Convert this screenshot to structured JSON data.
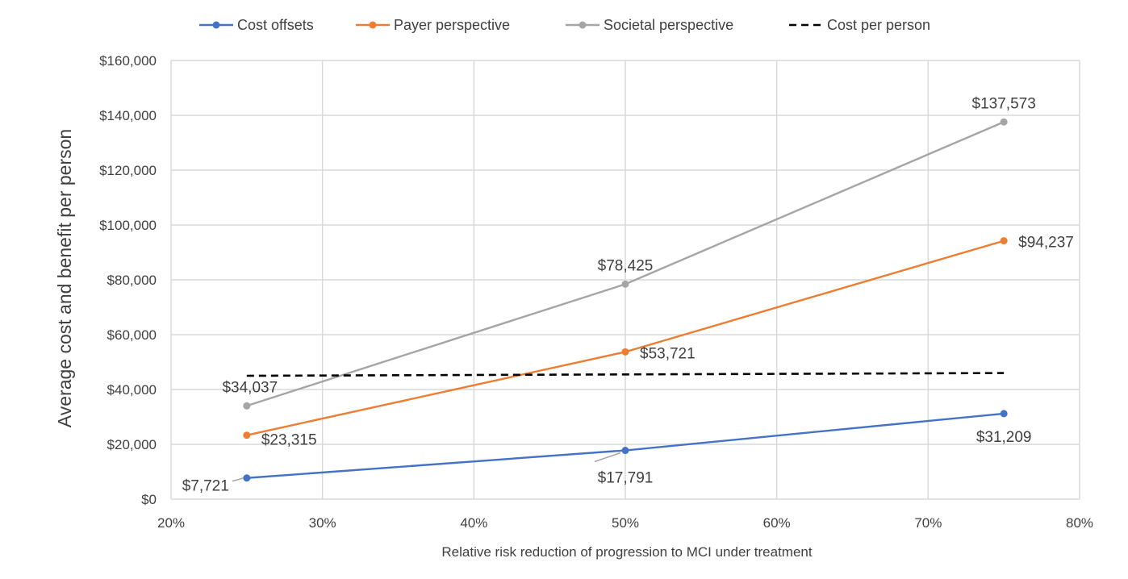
{
  "chart_data": {
    "type": "line",
    "title": "",
    "xlabel": "Relative risk reduction of progression to MCI under treatment",
    "ylabel": "Average cost and benefit per person",
    "xlim": [
      0.2,
      0.8
    ],
    "ylim": [
      0,
      160000
    ],
    "x_ticks": [
      0.2,
      0.3,
      0.4,
      0.5,
      0.6,
      0.7,
      0.8
    ],
    "x_tick_labels": [
      "20%",
      "30%",
      "40%",
      "50%",
      "60%",
      "70%",
      "80%"
    ],
    "y_ticks": [
      0,
      20000,
      40000,
      60000,
      80000,
      100000,
      120000,
      140000,
      160000
    ],
    "y_tick_labels": [
      "$0",
      "$20,000",
      "$40,000",
      "$60,000",
      "$80,000",
      "$100,000",
      "$120,000",
      "$140,000",
      "$160,000"
    ],
    "grid": true,
    "legend_position": "top",
    "series": [
      {
        "name": "Cost offsets",
        "color": "#4472c4",
        "style": "solid",
        "markers": true,
        "x": [
          0.25,
          0.5,
          0.75
        ],
        "y": [
          7721,
          17791,
          31209
        ],
        "labels": [
          "$7,721",
          "$17,791",
          "$31,209"
        ]
      },
      {
        "name": "Payer perspective",
        "color": "#ed7d31",
        "style": "solid",
        "markers": true,
        "x": [
          0.25,
          0.5,
          0.75
        ],
        "y": [
          23315,
          53721,
          94237
        ],
        "labels": [
          "$23,315",
          "$53,721",
          "$94,237"
        ]
      },
      {
        "name": "Societal perspective",
        "color": "#a5a5a5",
        "style": "solid",
        "markers": true,
        "x": [
          0.25,
          0.5,
          0.75
        ],
        "y": [
          34037,
          78425,
          137573
        ],
        "labels": [
          "$34,037",
          "$78,425",
          "$137,573"
        ]
      },
      {
        "name": "Cost per person",
        "color": "#000000",
        "style": "dashed",
        "markers": false,
        "x": [
          0.25,
          0.75
        ],
        "y": [
          45000,
          46000
        ],
        "labels": []
      }
    ]
  }
}
